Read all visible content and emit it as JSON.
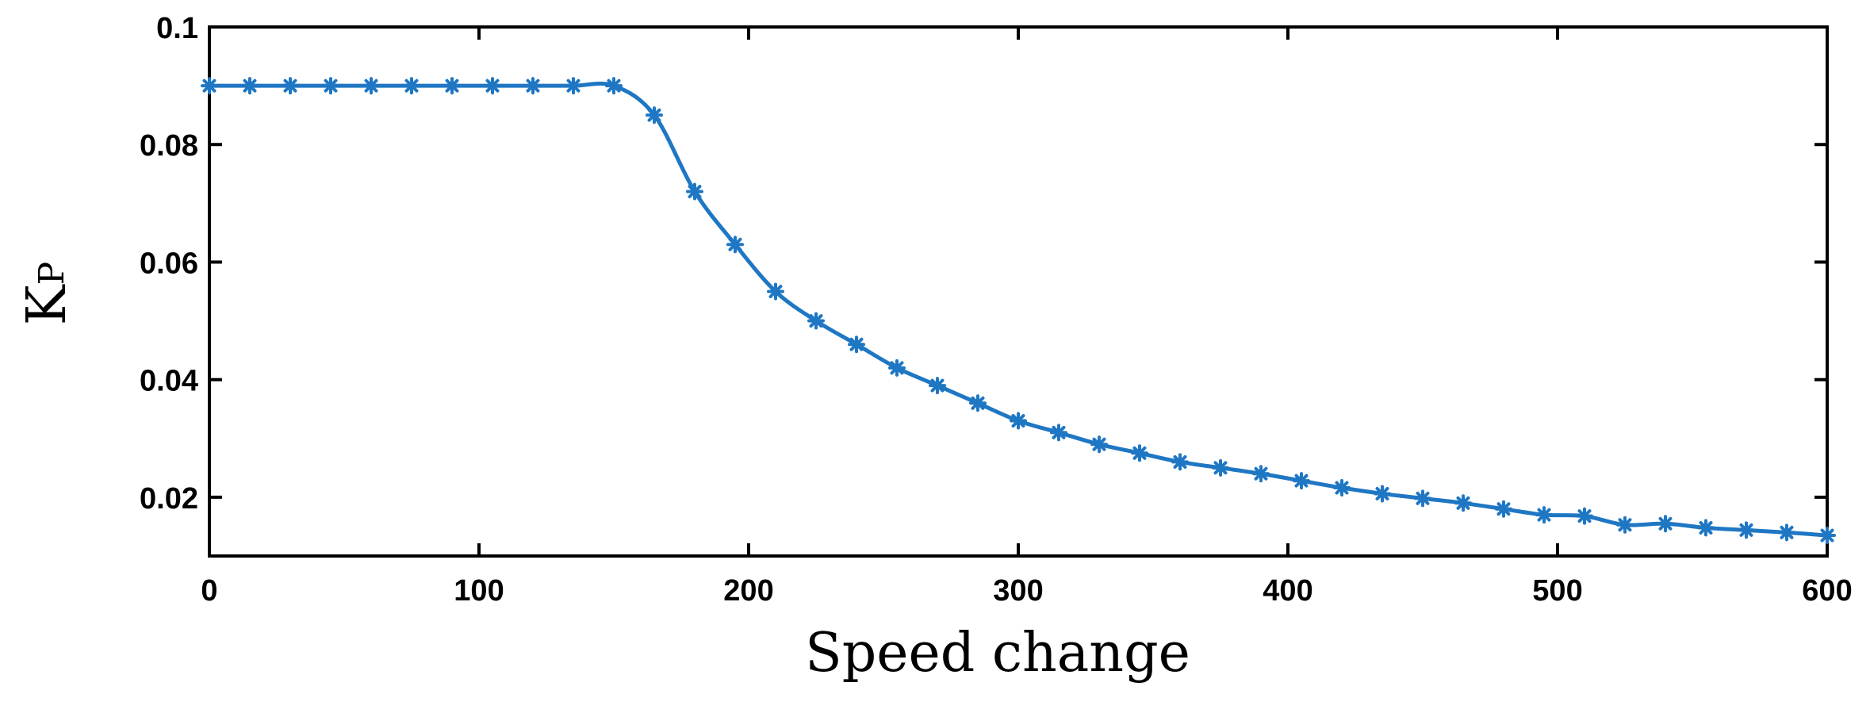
{
  "chart_data": {
    "type": "line",
    "xlabel": "Speed change",
    "ylabel_main": "K",
    "ylabel_sub": "P",
    "xlim": [
      0,
      600
    ],
    "ylim": [
      0.01,
      0.1
    ],
    "xticks": [
      0,
      100,
      200,
      300,
      400,
      500,
      600
    ],
    "xtick_labels": [
      "0",
      "100",
      "200",
      "300",
      "400",
      "500",
      "600"
    ],
    "yticks": [
      0.02,
      0.04,
      0.06,
      0.08,
      0.1
    ],
    "ytick_labels": [
      "0.02",
      "0.04",
      "0.06",
      "0.08",
      "0.1"
    ],
    "grid": false,
    "marker": "asterisk",
    "series": [
      {
        "color": "#1f77c4",
        "x": [
          0,
          15,
          30,
          45,
          60,
          75,
          90,
          105,
          120,
          135,
          150,
          165,
          180,
          195,
          210,
          225,
          240,
          255,
          270,
          285,
          300,
          315,
          330,
          345,
          360,
          375,
          390,
          405,
          420,
          435,
          450,
          465,
          480,
          495,
          510,
          525,
          540,
          555,
          570,
          585,
          600
        ],
        "y": [
          0.09,
          0.09,
          0.09,
          0.09,
          0.09,
          0.09,
          0.09,
          0.09,
          0.09,
          0.09,
          0.09,
          0.085,
          0.072,
          0.063,
          0.055,
          0.05,
          0.046,
          0.042,
          0.039,
          0.036,
          0.033,
          0.031,
          0.029,
          0.0275,
          0.026,
          0.025,
          0.024,
          0.0228,
          0.0216,
          0.0206,
          0.0198,
          0.019,
          0.018,
          0.017,
          0.0168,
          0.0153,
          0.0155,
          0.0148,
          0.0144,
          0.014,
          0.0135
        ]
      }
    ]
  }
}
